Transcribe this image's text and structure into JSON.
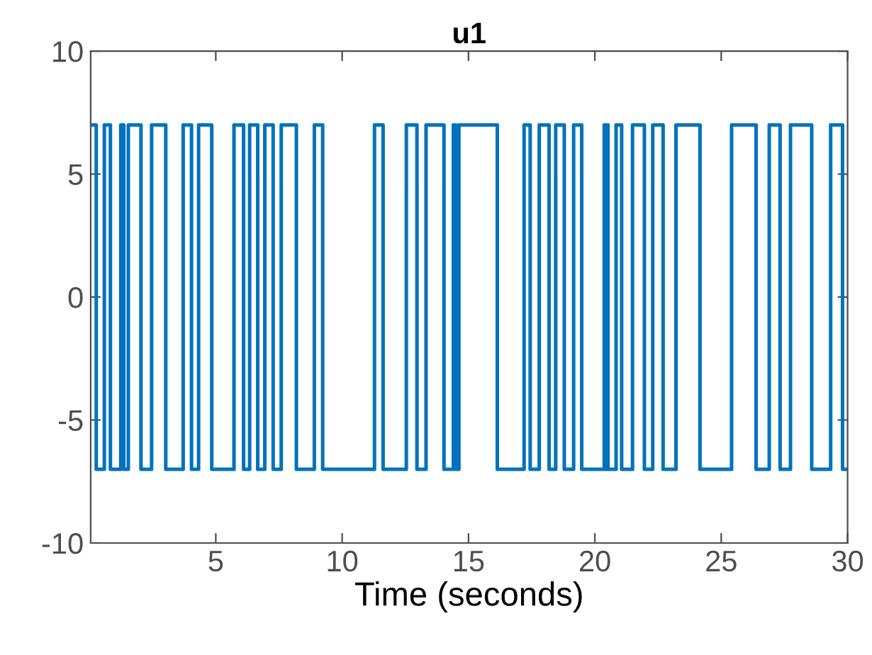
{
  "chart_data": {
    "type": "step",
    "title": "u1",
    "xlabel": "Time (seconds)",
    "xlim": [
      0.05,
      30
    ],
    "ylim": [
      -10,
      10
    ],
    "xticks": [
      5,
      10,
      15,
      20,
      25,
      30
    ],
    "yticks": [
      -10,
      -5,
      0,
      5,
      10
    ],
    "grid": false,
    "series": [
      {
        "color": "#0072bd",
        "x": [
          0.05,
          0.27,
          0.59,
          0.83,
          1.24,
          1.36,
          1.54,
          2.04,
          2.46,
          3.02,
          3.71,
          4.04,
          4.32,
          4.84,
          5.72,
          6.1,
          6.34,
          6.66,
          6.94,
          7.27,
          7.59,
          8.19,
          8.9,
          9.23,
          11.28,
          11.62,
          12.54,
          12.96,
          13.32,
          14.03,
          14.4,
          14.5,
          14.62,
          16.14,
          17.2,
          17.44,
          17.8,
          18.19,
          18.45,
          18.79,
          19.16,
          19.48,
          20.37,
          20.42,
          20.46,
          20.52,
          20.84,
          21.06,
          21.49,
          21.96,
          22.29,
          22.7,
          23.21,
          24.16,
          25.41,
          26.38,
          26.9,
          27.33,
          27.74,
          28.58,
          29.33,
          29.8,
          30
        ],
        "values": [
          7,
          -7,
          7,
          -7,
          7,
          -7,
          7,
          -7,
          7,
          -7,
          7,
          -7,
          7,
          -7,
          7,
          -7,
          7,
          -7,
          7,
          -7,
          7,
          -7,
          7,
          -7,
          7,
          -7,
          7,
          -7,
          7,
          -7,
          7,
          -7,
          7,
          -7,
          7,
          -7,
          7,
          -7,
          7,
          -7,
          7,
          -7,
          7,
          -7,
          7,
          -7,
          7,
          -7,
          7,
          -7,
          7,
          -7,
          7,
          -7,
          7,
          -7,
          7,
          -7,
          7,
          -7,
          7,
          -7,
          -7
        ]
      }
    ]
  }
}
